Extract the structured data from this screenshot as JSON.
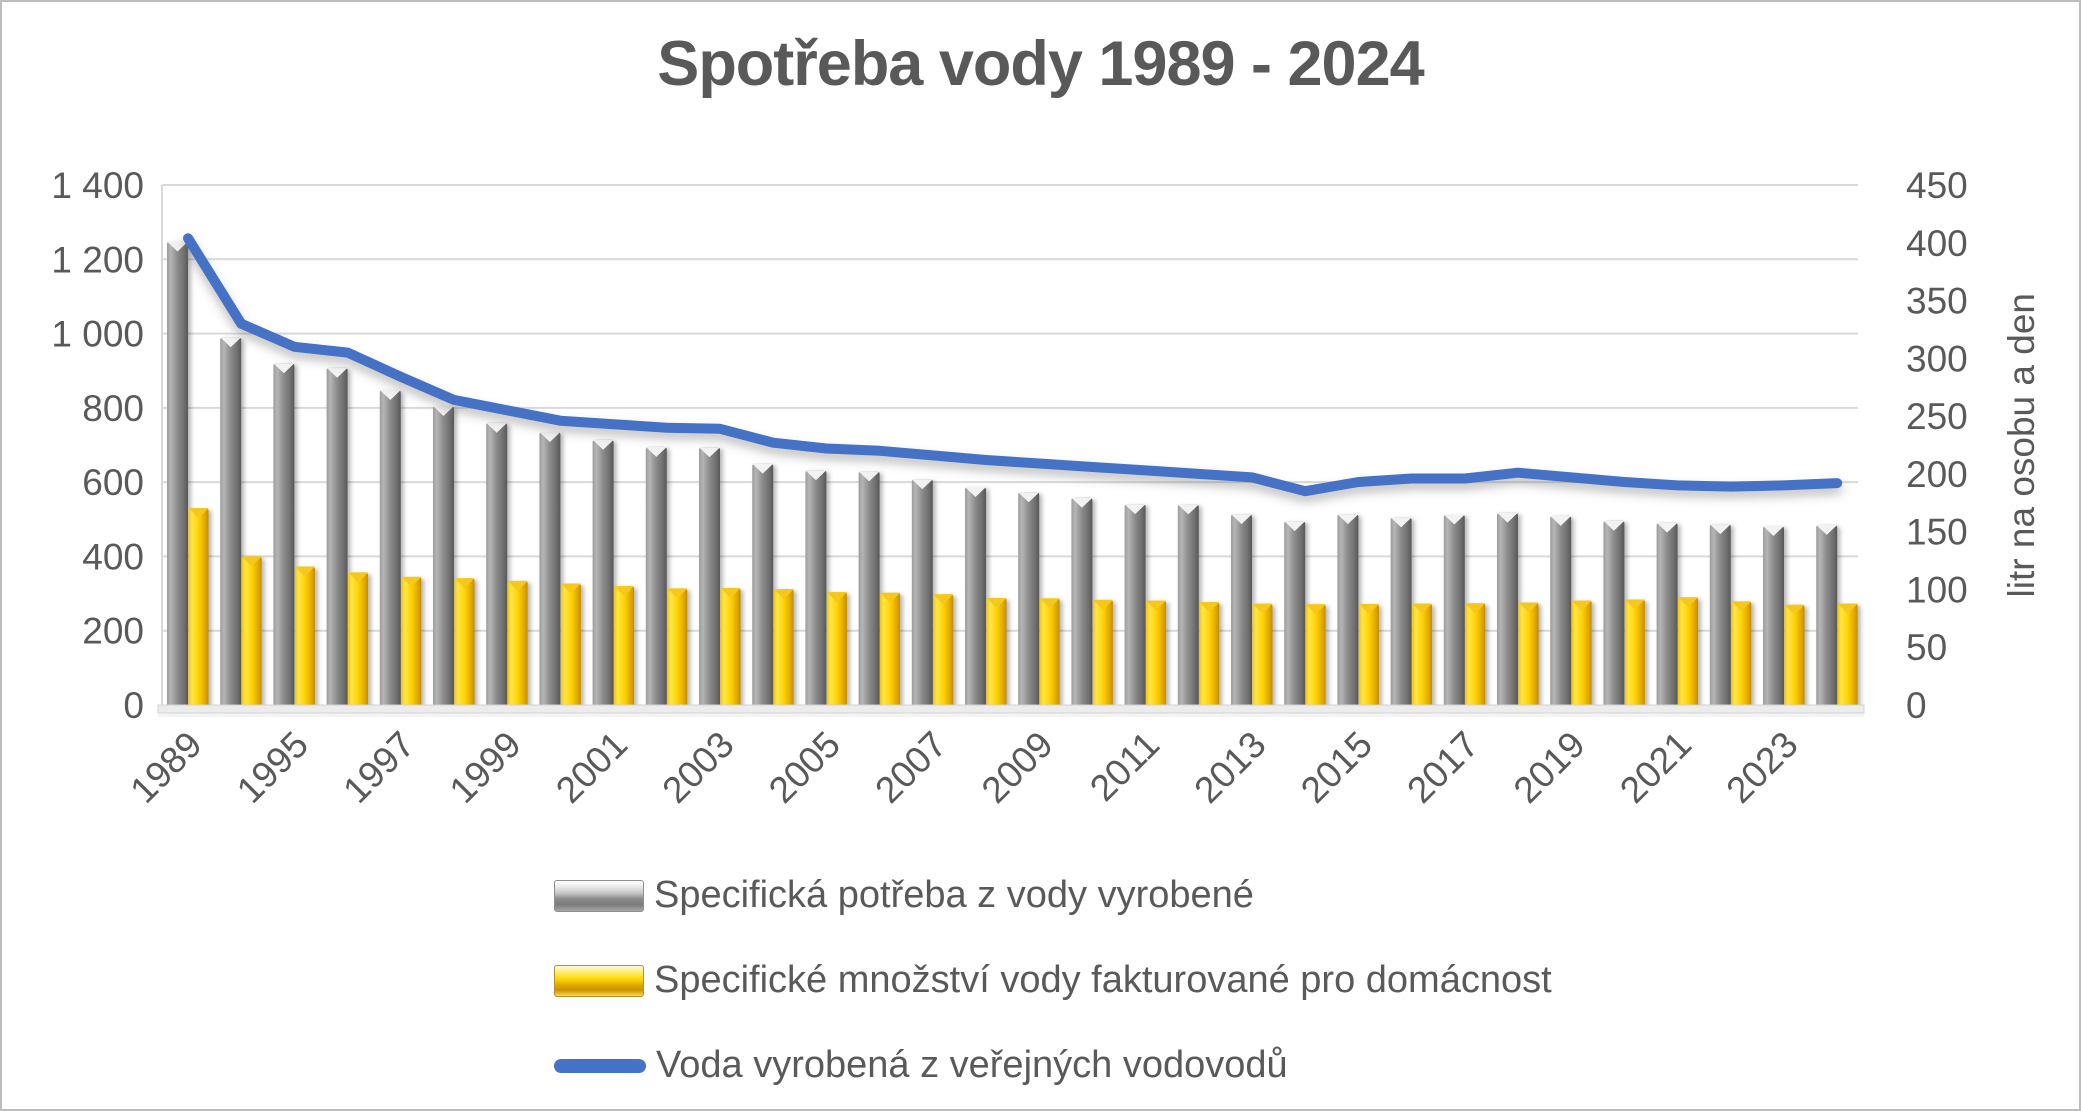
{
  "title": {
    "text": "Spotřeba vody 1989 - 2024",
    "color": "#595959"
  },
  "colors": {
    "text": "#595959",
    "gridline": "#d9d9d9",
    "plot_floor": "#ececec",
    "bar_gray": "#808080",
    "bar_yellow": "#ffd400",
    "line_blue": "#4472c4",
    "frame_border": "#bdbdbd"
  },
  "chart_data": {
    "type": "bar",
    "subtype": "combo-bar-line",
    "title": "Spotřeba vody 1989 - 2024",
    "categories": [
      1989,
      1994,
      1995,
      1996,
      1997,
      1998,
      1999,
      2000,
      2001,
      2002,
      2003,
      2004,
      2005,
      2006,
      2007,
      2008,
      2009,
      2010,
      2011,
      2012,
      2013,
      2014,
      2015,
      2016,
      2017,
      2018,
      2019,
      2020,
      2021,
      2022,
      2023,
      2024
    ],
    "x_tick_labels": [
      "1989",
      "1995",
      "1997",
      "1999",
      "2001",
      "2003",
      "2005",
      "2007",
      "2009",
      "2011",
      "2013",
      "2015",
      "2017",
      "2019",
      "2021",
      "2023"
    ],
    "series": [
      {
        "name": "Specifická potřeba z vody vyrobené",
        "type": "bar",
        "axis": "left",
        "color": "#808080",
        "values": [
          1248,
          990,
          920,
          908,
          848,
          805,
          760,
          735,
          714,
          695,
          694,
          650,
          632,
          629,
          608,
          587,
          573,
          558,
          541,
          540,
          514,
          495,
          514,
          505,
          513,
          518,
          509,
          496,
          491,
          487,
          482,
          485
        ]
      },
      {
        "name": "Specifické množství vody fakturované pro domácnost",
        "type": "bar",
        "axis": "left",
        "color": "#ffd400",
        "values": [
          530,
          400,
          373,
          357,
          345,
          341,
          334,
          327,
          320,
          314,
          315,
          312,
          304,
          302,
          298,
          288,
          287,
          283,
          281,
          277,
          273,
          271,
          272,
          273,
          274,
          276,
          281,
          284,
          290,
          279,
          270,
          273
        ]
      },
      {
        "name": "Voda vyrobená z veřejných vodovodů",
        "type": "line",
        "axis": "right",
        "color": "#4472c4",
        "values": [
          404,
          330,
          310,
          305,
          284,
          264,
          255,
          246,
          243,
          240,
          239,
          227,
          222,
          220,
          216,
          212,
          209,
          206,
          203,
          200,
          197,
          185,
          193,
          196,
          196,
          201,
          197,
          193,
          190,
          189,
          190,
          192
        ]
      }
    ],
    "y_left": {
      "min": 0,
      "max": 1400,
      "tick_values": [
        0,
        200,
        400,
        600,
        800,
        1000,
        1200,
        1400
      ],
      "tick_labels": [
        "0",
        "200",
        "400",
        "600",
        "800",
        "1 000",
        "1 200",
        "1 400"
      ]
    },
    "y_right": {
      "min": 0,
      "max": 450,
      "tick_values": [
        0,
        50,
        100,
        150,
        200,
        250,
        300,
        350,
        400,
        450
      ],
      "tick_labels": [
        "0",
        "50",
        "100",
        "150",
        "200",
        "250",
        "300",
        "350",
        "400",
        "450"
      ],
      "title": "litr na osobu a den"
    },
    "grid": true,
    "legend_position": "bottom-left"
  }
}
